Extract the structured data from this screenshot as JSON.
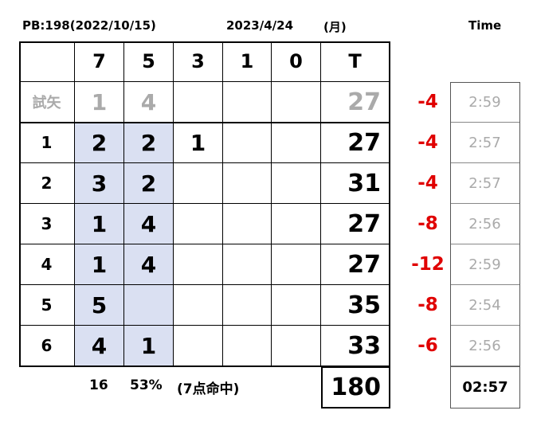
{
  "header": {
    "pb": "PB:198(2022/10/15)",
    "date": "2023/4/24",
    "weekday": "(月)"
  },
  "table": {
    "columns": [
      "7",
      "5",
      "3",
      "1",
      "0",
      "T"
    ],
    "rows": [
      {
        "label": "試矢",
        "cells": [
          "1",
          "4",
          null,
          null,
          null,
          "27"
        ]
      },
      {
        "label": "1",
        "cells": [
          "2",
          "2",
          "1",
          null,
          null,
          "27"
        ]
      },
      {
        "label": "2",
        "cells": [
          "3",
          "2",
          null,
          null,
          null,
          "31"
        ]
      },
      {
        "label": "3",
        "cells": [
          "1",
          "4",
          null,
          null,
          null,
          "27"
        ]
      },
      {
        "label": "4",
        "cells": [
          "1",
          "4",
          null,
          null,
          null,
          "27"
        ]
      },
      {
        "label": "5",
        "cells": [
          "5",
          null,
          null,
          null,
          null,
          "35"
        ]
      },
      {
        "label": "6",
        "cells": [
          "4",
          "1",
          null,
          null,
          null,
          "33"
        ]
      }
    ]
  },
  "side": {
    "time_title": "Time",
    "diffs": [
      "-4",
      "-4",
      "-4",
      "-8",
      "-12",
      "-8",
      "-6"
    ],
    "times": [
      "2:59",
      "2:57",
      "2:57",
      "2:56",
      "2:59",
      "2:54",
      "2:56"
    ]
  },
  "footer": {
    "count": "16",
    "rate": "53%",
    "note": "(7点命中)",
    "total": "180",
    "time": "02:57"
  }
}
